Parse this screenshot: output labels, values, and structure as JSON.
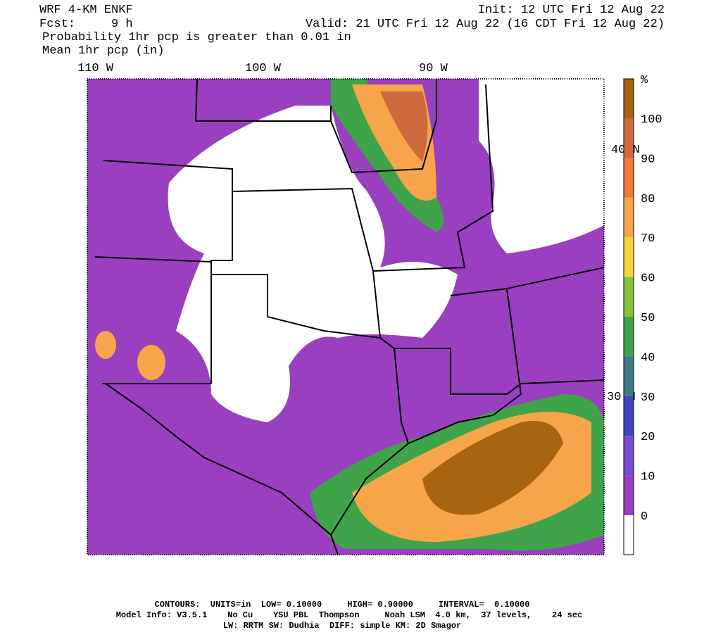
{
  "header": {
    "model": "WRF 4-KM ENKF",
    "forecast": "Fcst:     9 h",
    "init": "Init: 12 UTC Fri 12 Aug 22",
    "valid": "Valid: 21 UTC Fri 12 Aug 22 (16 CDT Fri 12 Aug 22)",
    "field1": "Probability 1hr pcp is greater than 0.01 in",
    "field2": "Mean 1hr pcp (in)"
  },
  "map": {
    "longitudes": [
      "110 W",
      "100 W",
      "90 W"
    ],
    "latitudes": [
      "40 N",
      "30 N"
    ]
  },
  "colorbar": {
    "unit": "%",
    "levels": [
      0,
      10,
      20,
      30,
      40,
      50,
      60,
      70,
      80,
      90,
      100
    ],
    "colors": [
      "#ffffff",
      "#9a3fc0",
      "#7a4bd0",
      "#3d47c4",
      "#3f7a86",
      "#3fa34a",
      "#86c23a",
      "#f7d33c",
      "#f7a54a",
      "#f07a3a",
      "#cf6a3c",
      "#a86410"
    ]
  },
  "footer": {
    "line1": "CONTOURS:  UNITS=in  LOW= 0.10000     HIGH= 0.90000     INTERVAL=  0.10000",
    "line2": "Model Info: V3.5.1    No Cu    YSU PBL  Thompson     Noah LSM  4.0 km,  37 levels,    24 sec",
    "line3": "LW: RRTM SW: Dudhia  DIFF: simple KM: 2D Smagor"
  }
}
